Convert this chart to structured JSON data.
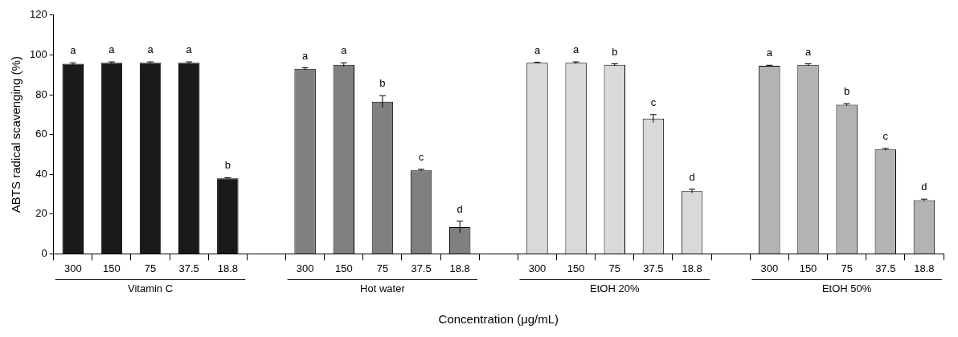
{
  "chart_data": {
    "type": "bar",
    "stacked": true,
    "ylabel": "ABTS radical scavenging (%)",
    "xlabel": "Concentration (μg/mL)",
    "categories": [
      "300",
      "150",
      "75",
      "37.5",
      "18.8",
      null,
      "300",
      "150",
      "75",
      "37.5",
      "18.8",
      null,
      "300",
      "150",
      "75",
      "37.5",
      "18.8",
      null,
      "300",
      "150",
      "75",
      "37.5",
      "18.8"
    ],
    "ylim": [
      0,
      120
    ],
    "yticks": [
      0,
      20,
      40,
      60,
      80,
      100,
      120
    ],
    "grid": false,
    "legend": false,
    "series": [
      {
        "name": "Vitamin C",
        "color": "#1a1a1a",
        "values": [
          95.5,
          96,
          96,
          96,
          38,
          null,
          null,
          null,
          null,
          null,
          null,
          null,
          null,
          null,
          null,
          null,
          null,
          null,
          null,
          null,
          null,
          null,
          null
        ],
        "errors": [
          0.5,
          0.5,
          0.5,
          0.5,
          0.3,
          null,
          null,
          null,
          null,
          null,
          null,
          null,
          null,
          null,
          null,
          null,
          null,
          null,
          null,
          null,
          null,
          null,
          null
        ],
        "value_labels": [
          "a",
          "a",
          "a",
          "a",
          "b",
          null,
          null,
          null,
          null,
          null,
          null,
          null,
          null,
          null,
          null,
          null,
          null,
          null,
          null,
          null,
          null,
          null,
          null
        ]
      },
      {
        "name": "Hot water",
        "color": "#808080",
        "values": [
          null,
          null,
          null,
          null,
          null,
          null,
          93,
          95,
          76.5,
          42,
          13.5,
          null,
          null,
          null,
          null,
          null,
          null,
          null,
          null,
          null,
          null,
          null,
          null
        ],
        "errors": [
          null,
          null,
          null,
          null,
          null,
          null,
          0.5,
          1,
          3,
          0.5,
          3,
          null,
          null,
          null,
          null,
          null,
          null,
          null,
          null,
          null,
          null,
          null,
          null
        ],
        "value_labels": [
          null,
          null,
          null,
          null,
          null,
          null,
          "a",
          "a",
          "b",
          "c",
          "d",
          null,
          null,
          null,
          null,
          null,
          null,
          null,
          null,
          null,
          null,
          null,
          null
        ]
      },
      {
        "name": "EtOH 20%",
        "color": "#d9d9d9",
        "values": [
          null,
          null,
          null,
          null,
          null,
          null,
          null,
          null,
          null,
          null,
          null,
          null,
          96,
          96,
          95,
          68,
          31.5,
          null,
          null,
          null,
          null,
          null,
          null
        ],
        "errors": [
          null,
          null,
          null,
          null,
          null,
          null,
          null,
          null,
          null,
          null,
          null,
          null,
          0.3,
          0.5,
          0.5,
          2,
          1,
          null,
          null,
          null,
          null,
          null,
          null
        ],
        "value_labels": [
          null,
          null,
          null,
          null,
          null,
          null,
          null,
          null,
          null,
          null,
          null,
          null,
          "a",
          "a",
          "b",
          "c",
          "d",
          null,
          null,
          null,
          null,
          null,
          null
        ]
      },
      {
        "name": "EtOH 50%",
        "color": "#b3b3b3",
        "values": [
          null,
          null,
          null,
          null,
          null,
          null,
          null,
          null,
          null,
          null,
          null,
          null,
          null,
          null,
          null,
          null,
          null,
          null,
          94.5,
          95,
          75,
          52.5,
          27
        ],
        "errors": [
          null,
          null,
          null,
          null,
          null,
          null,
          null,
          null,
          null,
          null,
          null,
          null,
          null,
          null,
          null,
          null,
          null,
          null,
          0.3,
          0.5,
          0.5,
          0.5,
          0.5
        ],
        "value_labels": [
          null,
          null,
          null,
          null,
          null,
          null,
          null,
          null,
          null,
          null,
          null,
          null,
          null,
          null,
          null,
          null,
          null,
          null,
          "a",
          "a",
          "b",
          "c",
          "d"
        ]
      }
    ]
  }
}
